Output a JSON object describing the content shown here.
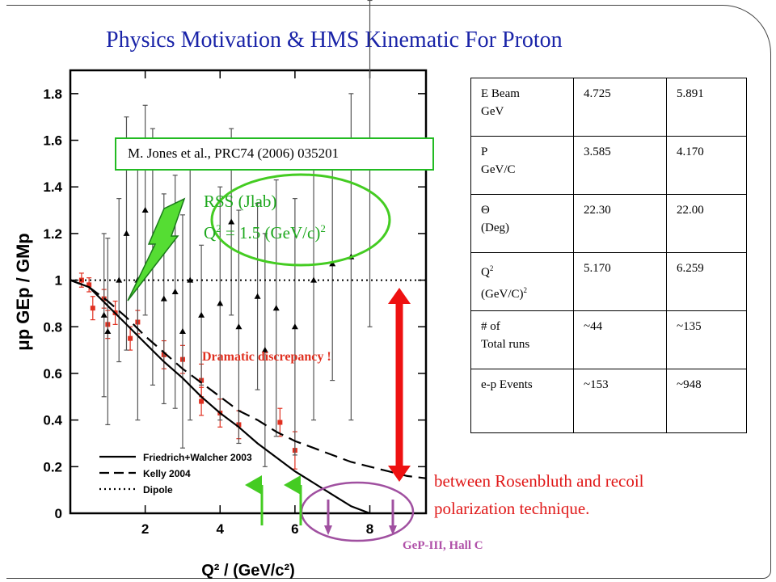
{
  "slide": {
    "title": "Physics Motivation & HMS Kinematic For Proton",
    "reference": "M. Jones et al., PRC74 (2006) 035201",
    "rss_line1": "RSS (Jlab)",
    "rss_line2_pre": "Q",
    "rss_line2_sup": "2",
    "rss_line2_mid": " = 1.5 (GeV/c)",
    "rss_line2_sup2": "2",
    "discrepancy": "Dramatic discrepancy !",
    "between_line1": "between Rosenbluth and recoil",
    "between_line2": "polarization technique.",
    "gep_label": "GeP-III, Hall C"
  },
  "table": {
    "rows": [
      {
        "label_a": "E Beam",
        "label_b": "GeV",
        "v1": "4.725",
        "v2": "5.891"
      },
      {
        "label_a": "P",
        "label_b": "GeV/C",
        "v1": "3.585",
        "v2": "4.170"
      },
      {
        "label_a": "Θ",
        "label_b": "(Deg)",
        "v1": "22.30",
        "v2": "22.00"
      },
      {
        "label_a": "Q",
        "label_a_sup": "2",
        "label_b": "(GeV/C)",
        "label_b_sup": "2",
        "v1": "5.170",
        "v2": "6.259"
      },
      {
        "label_a": "# of",
        "label_b": "Total runs",
        "v1": "~44",
        "v2": "~135"
      },
      {
        "label_a": "e-p Events",
        "label_b": "",
        "v1": "~153",
        "v2": "~948"
      }
    ]
  },
  "chart_data": {
    "type": "scatter",
    "xlabel": "Q² / (GeV/c²)",
    "ylabel": "μp GEp / GMp",
    "xlim": [
      0,
      9.5
    ],
    "ylim": [
      0,
      1.9
    ],
    "x_ticks": [
      2,
      4,
      6,
      8
    ],
    "y_ticks": [
      0,
      0.2,
      0.4,
      0.6,
      0.8,
      1,
      1.2,
      1.4,
      1.6,
      1.8
    ],
    "y_tick_labels": [
      "0",
      "0.2",
      "0.4",
      "0.6",
      "0.8",
      "1",
      "1.2",
      "1.4",
      "1.6",
      "1.8"
    ],
    "legend_position": "bottom-left",
    "legend": [
      "Friedrich+Walcher 2003",
      "Kelly 2004",
      "Dipole"
    ],
    "colors": {
      "recoil": "#e03020",
      "rosenbluth": "#000000",
      "arrow_green": "#44cc22",
      "arrow_purple": "#a050a0",
      "arrow_red": "#ee1111"
    },
    "series": [
      {
        "name": "Friedrich+Walcher 2003",
        "style": "solid",
        "x": [
          0,
          0.5,
          1,
          1.5,
          2,
          2.5,
          3,
          3.5,
          4,
          4.5,
          5,
          5.5,
          6,
          6.5,
          7,
          7.5,
          8.0
        ],
        "y": [
          1.0,
          0.97,
          0.89,
          0.81,
          0.73,
          0.65,
          0.58,
          0.5,
          0.43,
          0.37,
          0.3,
          0.24,
          0.18,
          0.13,
          0.08,
          0.03,
          0.0
        ]
      },
      {
        "name": "Kelly 2004",
        "style": "dashed",
        "x": [
          0,
          0.5,
          1,
          1.5,
          2,
          2.5,
          3,
          3.5,
          4,
          4.5,
          5,
          5.5,
          6,
          6.5,
          7,
          7.5,
          8,
          8.5,
          9,
          9.5
        ],
        "y": [
          1.0,
          0.97,
          0.91,
          0.84,
          0.76,
          0.69,
          0.62,
          0.56,
          0.5,
          0.44,
          0.4,
          0.35,
          0.31,
          0.28,
          0.25,
          0.22,
          0.2,
          0.18,
          0.16,
          0.15
        ]
      },
      {
        "name": "Dipole",
        "style": "dotted",
        "x": [
          0,
          9.5
        ],
        "y": [
          1,
          1
        ]
      },
      {
        "name": "recoil polarization",
        "points": [
          [
            0.3,
            1.0,
            0.03
          ],
          [
            0.5,
            0.98,
            0.03
          ],
          [
            0.9,
            0.92,
            0.04
          ],
          [
            1.2,
            0.86,
            0.05
          ],
          [
            1.8,
            0.82,
            0.05
          ],
          [
            2.5,
            0.68,
            0.06
          ],
          [
            3.0,
            0.66,
            0.06
          ],
          [
            3.5,
            0.57,
            0.07
          ],
          [
            3.5,
            0.48,
            0.06
          ],
          [
            4.0,
            0.43,
            0.06
          ],
          [
            4.5,
            0.38,
            0.06
          ],
          [
            5.6,
            0.39,
            0.06
          ],
          [
            6.0,
            0.27,
            0.08
          ],
          [
            0.6,
            0.88,
            0.05
          ],
          [
            1.0,
            0.81,
            0.06
          ],
          [
            1.6,
            0.75,
            0.05
          ]
        ]
      },
      {
        "name": "Rosenbluth",
        "points": [
          [
            1.3,
            1.0,
            0.35
          ],
          [
            1.5,
            1.2,
            0.5
          ],
          [
            1.8,
            1.0,
            0.6
          ],
          [
            2.0,
            1.3,
            0.45
          ],
          [
            2.5,
            0.92,
            0.45
          ],
          [
            3.0,
            0.78,
            0.5
          ],
          [
            3.5,
            0.85,
            0.3
          ],
          [
            4.0,
            0.9,
            0.5
          ],
          [
            5.0,
            0.93,
            0.4
          ],
          [
            5.5,
            0.88,
            0.55
          ],
          [
            6.0,
            0.8,
            0.55
          ],
          [
            7.0,
            1.07,
            0.5
          ],
          [
            2.2,
            1.1,
            0.55
          ],
          [
            2.8,
            0.95,
            0.5
          ],
          [
            0.9,
            0.85,
            0.35
          ],
          [
            1.0,
            0.78,
            0.4
          ],
          [
            4.5,
            0.8,
            0.5
          ],
          [
            6.5,
            1.0,
            0.6
          ],
          [
            7.5,
            1.1,
            0.7
          ],
          [
            4.3,
            1.25,
            0.4
          ],
          [
            5.2,
            0.7,
            0.5
          ],
          [
            3.2,
            1.0,
            0.6
          ],
          [
            8.0,
            1.5,
            0.7
          ]
        ]
      }
    ]
  }
}
